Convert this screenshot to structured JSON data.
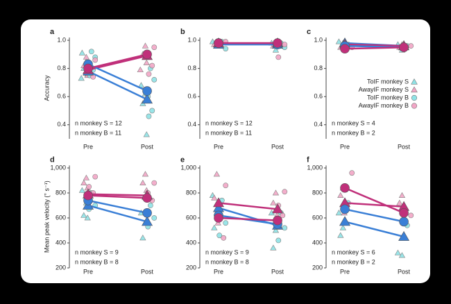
{
  "chart_data": [
    {
      "type": "scatter-line",
      "letter": "a",
      "ylabel": "Accuracy",
      "categories": [
        "Pre",
        "Post"
      ],
      "ylim": [
        0.3,
        1.02
      ],
      "yticks": [
        {
          "value": 1.0,
          "label": "1.0"
        },
        0.8,
        0.6,
        0.4
      ],
      "annotations": [
        "n monkey S = 12",
        "n monkey B = 11"
      ],
      "series": [
        {
          "marker": "triangle",
          "color": "#3a7fd6",
          "point_color": "#8fe3e6",
          "values": [
            0.78,
            0.58
          ],
          "pre_points": [
            0.91,
            0.85,
            0.8,
            0.76,
            0.73
          ],
          "post_points": [
            0.68,
            0.62,
            0.55,
            0.33
          ]
        },
        {
          "marker": "triangle",
          "color": "#c0307a",
          "point_color": "#f2a6c6",
          "values": [
            0.79,
            0.89
          ],
          "pre_points": [
            0.88,
            0.82,
            0.75
          ],
          "post_points": [
            0.96,
            0.9,
            0.84,
            0.79
          ]
        },
        {
          "marker": "circle",
          "color": "#3a7fd6",
          "point_color": "#8fe3e6",
          "values": [
            0.83,
            0.64
          ],
          "pre_points": [
            0.92,
            0.88,
            0.84,
            0.79,
            0.75
          ],
          "post_points": [
            0.8,
            0.72,
            0.6,
            0.5,
            0.46
          ]
        },
        {
          "marker": "circle",
          "color": "#c0307a",
          "point_color": "#f2a6c6",
          "values": [
            0.8,
            0.9
          ],
          "pre_points": [
            0.86,
            0.78,
            0.74
          ],
          "post_points": [
            0.95,
            0.88,
            0.82,
            0.76
          ]
        }
      ]
    },
    {
      "type": "scatter-line",
      "letter": "b",
      "categories": [
        "Pre",
        "Post"
      ],
      "ylim": [
        0.3,
        1.02
      ],
      "yticks": [
        {
          "value": 1.0,
          "label": "1.0"
        },
        0.8,
        0.6,
        0.4
      ],
      "annotations": [
        "n monkey S = 12",
        "n monkey B = 11"
      ],
      "series": [
        {
          "marker": "triangle",
          "color": "#3a7fd6",
          "point_color": "#8fe3e6",
          "values": [
            0.97,
            0.97
          ],
          "pre_points": [
            0.99,
            0.96
          ],
          "post_points": [
            0.98,
            0.93
          ]
        },
        {
          "marker": "triangle",
          "color": "#c0307a",
          "point_color": "#f2a6c6",
          "values": [
            0.98,
            0.98
          ],
          "pre_points": [
            0.99,
            0.97
          ],
          "post_points": [
            0.99,
            0.96
          ]
        },
        {
          "marker": "circle",
          "color": "#3a7fd6",
          "point_color": "#8fe3e6",
          "values": [
            0.98,
            0.97
          ],
          "pre_points": [
            0.99,
            0.94
          ],
          "post_points": [
            0.98,
            0.95
          ]
        },
        {
          "marker": "circle",
          "color": "#c0307a",
          "point_color": "#f2a6c6",
          "values": [
            0.98,
            0.98
          ],
          "pre_points": [
            0.99,
            0.96
          ],
          "post_points": [
            0.97,
            0.88
          ]
        }
      ]
    },
    {
      "type": "scatter-line",
      "letter": "c",
      "categories": [
        "Pre",
        "Post"
      ],
      "ylim": [
        0.3,
        1.02
      ],
      "yticks": [
        {
          "value": 1.0,
          "label": "1.0"
        },
        0.8,
        0.6,
        0.4
      ],
      "annotations": [
        "n monkey S = 4",
        "n monkey B = 2"
      ],
      "series": [
        {
          "name": "ToIF monkey S",
          "marker": "triangle",
          "color": "#3a7fd6",
          "point_color": "#8fe3e6",
          "values": [
            0.98,
            0.96
          ],
          "pre_points": [
            0.99,
            0.96
          ],
          "post_points": [
            0.97,
            0.93
          ]
        },
        {
          "name": "AwayIF monkey S",
          "marker": "triangle",
          "color": "#c0307a",
          "point_color": "#f2a6c6",
          "values": [
            0.97,
            0.96
          ],
          "pre_points": [
            0.98,
            0.95
          ],
          "post_points": [
            0.97,
            0.95
          ]
        },
        {
          "name": "ToIF monkey B",
          "marker": "circle",
          "color": "#3a7fd6",
          "point_color": "#8fe3e6",
          "values": [
            0.96,
            0.95
          ],
          "pre_points": [
            0.97
          ],
          "post_points": [
            0.96
          ]
        },
        {
          "name": "AwayIF monkey B",
          "marker": "circle",
          "color": "#c0307a",
          "point_color": "#f2a6c6",
          "values": [
            0.94,
            0.95
          ],
          "pre_points": [
            0.95
          ],
          "post_points": [
            0.96
          ]
        }
      ]
    },
    {
      "type": "scatter-line",
      "letter": "d",
      "ylabel": "Mean peak velocity (° s⁻¹)",
      "categories": [
        "Pre",
        "Post"
      ],
      "ylim": [
        200,
        1020
      ],
      "yticks": [
        {
          "value": 1000,
          "label": "1,000"
        },
        800,
        600,
        400,
        200
      ],
      "annotations": [
        "n monkey S = 9",
        "n monkey B = 8"
      ],
      "series": [
        {
          "marker": "triangle",
          "color": "#3a7fd6",
          "point_color": "#8fe3e6",
          "values": [
            700,
            570
          ],
          "pre_points": [
            820,
            720,
            620,
            600
          ],
          "post_points": [
            640,
            560,
            440
          ]
        },
        {
          "marker": "triangle",
          "color": "#c0307a",
          "point_color": "#f2a6c6",
          "values": [
            790,
            780
          ],
          "pre_points": [
            920,
            880,
            840
          ],
          "post_points": [
            950,
            880,
            820
          ]
        },
        {
          "marker": "circle",
          "color": "#3a7fd6",
          "point_color": "#8fe3e6",
          "values": [
            740,
            640
          ],
          "pre_points": [
            800,
            700,
            670
          ],
          "post_points": [
            700,
            600,
            530
          ]
        },
        {
          "marker": "circle",
          "color": "#c0307a",
          "point_color": "#f2a6c6",
          "values": [
            780,
            760
          ],
          "pre_points": [
            930,
            850,
            800
          ],
          "post_points": [
            880,
            800,
            740
          ]
        }
      ]
    },
    {
      "type": "scatter-line",
      "letter": "e",
      "categories": [
        "Pre",
        "Post"
      ],
      "ylim": [
        200,
        1020
      ],
      "yticks": [
        {
          "value": 1000,
          "label": "1,000"
        },
        800,
        600,
        400,
        200
      ],
      "annotations": [
        "n monkey S = 9",
        "n monkey B = 8"
      ],
      "series": [
        {
          "marker": "triangle",
          "color": "#3a7fd6",
          "point_color": "#8fe3e6",
          "values": [
            680,
            540
          ],
          "pre_points": [
            780,
            640,
            520
          ],
          "post_points": [
            640,
            500,
            360
          ]
        },
        {
          "marker": "triangle",
          "color": "#c0307a",
          "point_color": "#f2a6c6",
          "values": [
            720,
            670
          ],
          "pre_points": [
            950,
            760,
            560
          ],
          "post_points": [
            800,
            720,
            620
          ]
        },
        {
          "marker": "circle",
          "color": "#3a7fd6",
          "point_color": "#8fe3e6",
          "values": [
            620,
            550
          ],
          "pre_points": [
            740,
            560,
            460
          ],
          "post_points": [
            640,
            520,
            420
          ]
        },
        {
          "marker": "circle",
          "color": "#c0307a",
          "point_color": "#f2a6c6",
          "values": [
            600,
            580
          ],
          "pre_points": [
            860,
            640,
            440
          ],
          "post_points": [
            810,
            700,
            620
          ]
        }
      ]
    },
    {
      "type": "scatter-line",
      "letter": "f",
      "categories": [
        "Pre",
        "Post"
      ],
      "ylim": [
        200,
        1020
      ],
      "yticks": [
        {
          "value": 1000,
          "label": "1,000"
        },
        800,
        600,
        400,
        200
      ],
      "annotations": [
        "n monkey S = 6",
        "n monkey B = 2"
      ],
      "series": [
        {
          "marker": "triangle",
          "color": "#3a7fd6",
          "point_color": "#8fe3e6",
          "values": [
            570,
            450
          ],
          "pre_points": [
            640,
            520,
            460
          ],
          "post_points": [
            320,
            300
          ]
        },
        {
          "marker": "triangle",
          "color": "#c0307a",
          "point_color": "#f2a6c6",
          "values": [
            720,
            690
          ],
          "pre_points": [
            840,
            780,
            640
          ],
          "post_points": [
            780,
            720,
            640
          ]
        },
        {
          "marker": "circle",
          "color": "#3a7fd6",
          "point_color": "#8fe3e6",
          "values": [
            670,
            570
          ],
          "pre_points": [
            720
          ],
          "post_points": [
            540
          ]
        },
        {
          "marker": "circle",
          "color": "#c0307a",
          "point_color": "#f2a6c6",
          "values": [
            840,
            640
          ],
          "pre_points": [
            960
          ],
          "post_points": [
            620
          ]
        }
      ]
    }
  ]
}
